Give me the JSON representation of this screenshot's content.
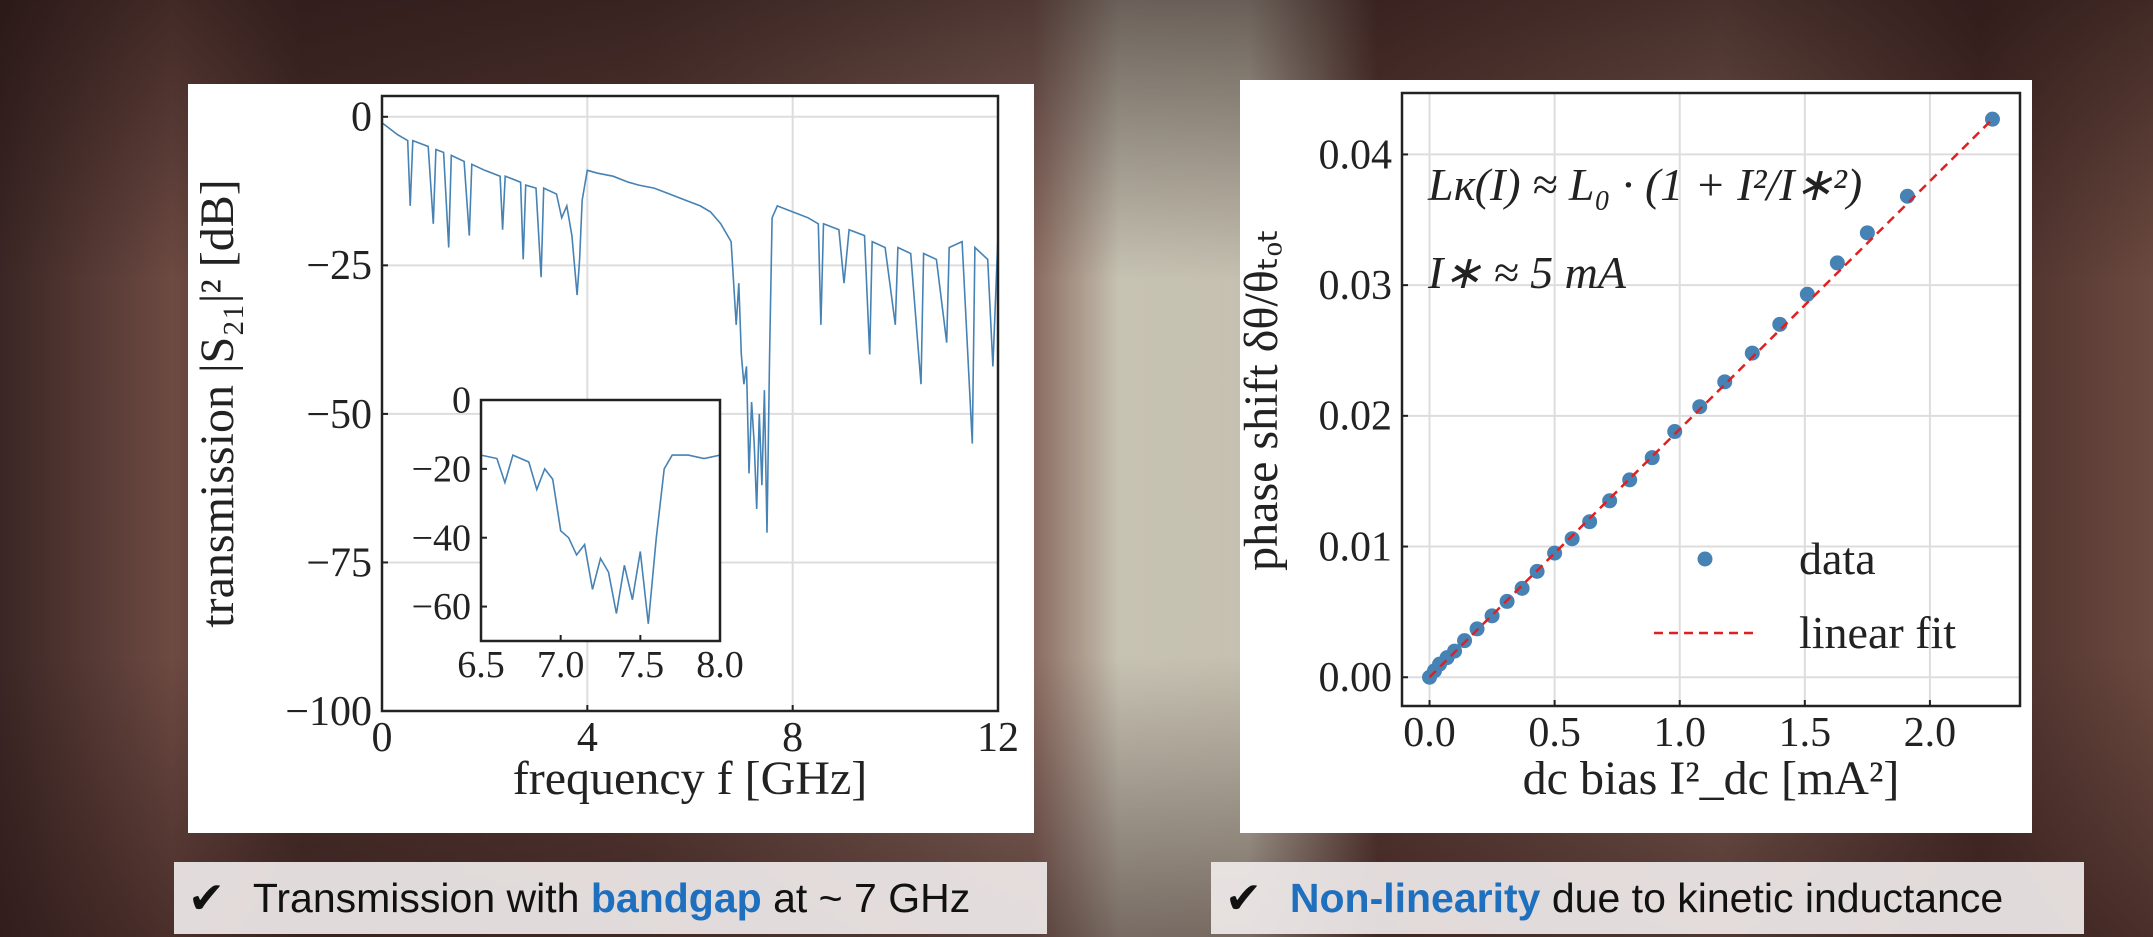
{
  "chart_data": [
    {
      "type": "line",
      "xlabel": "frequency f [GHz]",
      "ylabel": "transmission |S₂₁|² [dB]",
      "color": "#4682b4",
      "grid": true,
      "x": [
        0,
        0.3,
        0.5,
        0.55,
        0.6,
        0.9,
        1.0,
        1.05,
        1.2,
        1.3,
        1.35,
        1.6,
        1.7,
        1.75,
        2.0,
        2.3,
        2.35,
        2.4,
        2.7,
        2.75,
        2.8,
        3.0,
        3.1,
        3.15,
        3.4,
        3.5,
        3.6,
        3.7,
        3.8,
        3.85,
        3.9,
        4.0,
        4.2,
        4.5,
        4.8,
        5.0,
        5.3,
        5.6,
        5.9,
        6.2,
        6.4,
        6.6,
        6.8,
        6.9,
        6.95,
        7.0,
        7.05,
        7.1,
        7.15,
        7.2,
        7.25,
        7.3,
        7.35,
        7.4,
        7.45,
        7.5,
        7.55,
        7.6,
        7.7,
        8.0,
        8.3,
        8.5,
        8.55,
        8.6,
        8.9,
        9.0,
        9.1,
        9.4,
        9.5,
        9.55,
        9.8,
        10.0,
        10.05,
        10.3,
        10.5,
        10.55,
        10.8,
        11.0,
        11.05,
        11.3,
        11.5,
        11.55,
        11.8,
        11.9,
        12.0
      ],
      "values": [
        -1,
        -3,
        -4,
        -15,
        -4,
        -5,
        -18,
        -5.5,
        -6,
        -22,
        -6.5,
        -7.5,
        -20,
        -8,
        -9,
        -10,
        -19,
        -10,
        -11,
        -24,
        -11.5,
        -12,
        -27,
        -12,
        -13,
        -17,
        -15,
        -20,
        -30,
        -24,
        -14,
        -9,
        -9.5,
        -10,
        -11,
        -11.5,
        -12,
        -13,
        -14,
        -15,
        -16,
        -18,
        -21,
        -35,
        -28,
        -40,
        -45,
        -42,
        -60,
        -48,
        -55,
        -66,
        -50,
        -62,
        -46,
        -70,
        -40,
        -17,
        -15,
        -16,
        -17,
        -18,
        -35,
        -18,
        -19,
        -28,
        -19,
        -20,
        -40,
        -21,
        -22,
        -35,
        -22,
        -23,
        -45,
        -23,
        -24,
        -38,
        -22,
        -21,
        -55,
        -22,
        -24,
        -42,
        -20
      ],
      "xlim": [
        0,
        12
      ],
      "ylim": [
        -100,
        3.5
      ],
      "xticks": [
        0,
        4,
        8,
        12
      ],
      "yticks": [
        0,
        {
          "value": -25,
          "label": "−25"
        },
        {
          "value": -50,
          "label": "−50"
        },
        {
          "value": -75,
          "label": "−75"
        },
        {
          "value": -100,
          "label": "−100"
        }
      ]
    },
    {
      "type": "line",
      "color": "#4682b4",
      "grid": false,
      "x": [
        6.5,
        6.6,
        6.65,
        6.7,
        6.8,
        6.85,
        6.9,
        6.95,
        7.0,
        7.05,
        7.1,
        7.15,
        7.2,
        7.25,
        7.3,
        7.35,
        7.4,
        7.45,
        7.5,
        7.55,
        7.6,
        7.65,
        7.7,
        7.8,
        7.9,
        8.0
      ],
      "values": [
        -16,
        -17,
        -24,
        -16,
        -18,
        -26,
        -20,
        -23,
        -38,
        -40,
        -45,
        -42,
        -55,
        -46,
        -50,
        -62,
        -48,
        -58,
        -44,
        -65,
        -40,
        -20,
        -16,
        -16,
        -17,
        -16
      ],
      "xlim": [
        6.5,
        8.0
      ],
      "ylim": [
        -70,
        0
      ],
      "xticks": [
        {
          "value": 6.5,
          "label": "6.5"
        },
        {
          "value": 7,
          "label": "7.0"
        },
        {
          "value": 7.5,
          "label": "7.5"
        },
        {
          "value": 8,
          "label": "8.0"
        }
      ],
      "yticks": [
        0,
        {
          "value": -20,
          "label": "−20"
        },
        {
          "value": -40,
          "label": "−40"
        },
        {
          "value": -60,
          "label": "−60"
        }
      ]
    },
    {
      "type": "scatter",
      "xlabel": "dc bias I²_dc [mA²]",
      "ylabel": "phase shift δθ/θₜₒₜ",
      "grid": true,
      "annotations": [
        "Lᴋ(I) ≈ L₀ · (1 + I²/I∗²)",
        "I∗ ≈ 5 mA"
      ],
      "legend": "lower right",
      "series": [
        {
          "name": "data",
          "color": "#4682b4",
          "style": "markers",
          "x": [
            0,
            0.02,
            0.04,
            0.07,
            0.1,
            0.14,
            0.19,
            0.25,
            0.31,
            0.37,
            0.43,
            0.5,
            0.57,
            0.64,
            0.72,
            0.8,
            0.89,
            0.98,
            1.08,
            1.18,
            1.29,
            1.4,
            1.51,
            1.63,
            1.75,
            1.91,
            2.25
          ],
          "values": [
            0,
            0.0005,
            0.001,
            0.0015,
            0.002,
            0.0028,
            0.0037,
            0.0047,
            0.0058,
            0.0068,
            0.0081,
            0.0095,
            0.0106,
            0.0119,
            0.0135,
            0.0151,
            0.0168,
            0.0188,
            0.0207,
            0.0226,
            0.0248,
            0.027,
            0.0293,
            0.0317,
            0.034,
            0.0368,
            0.0427
          ]
        },
        {
          "name": "linear fit",
          "color": "#e02020",
          "style": "dashed",
          "x": [
            0,
            2.25
          ],
          "values": [
            0,
            0.0427
          ]
        }
      ],
      "xlim": [
        -0.11,
        2.36
      ],
      "ylim": [
        -0.0022,
        0.0447
      ],
      "xticks": [
        {
          "value": 0,
          "label": "0.0"
        },
        0.5,
        {
          "value": 1,
          "label": "1.0"
        },
        1.5,
        {
          "value": 2,
          "label": "2.0"
        }
      ],
      "yticks": [
        {
          "value": 0,
          "label": "0.00"
        },
        0.01,
        0.02,
        0.03,
        0.04
      ]
    }
  ],
  "captions": [
    {
      "check": "✔",
      "parts": [
        "Transmission with",
        "bandgap",
        "at ~ 7 GHz"
      ]
    },
    {
      "check": "✔",
      "parts": [
        "",
        "Non-linearity",
        "due to kinetic inductance"
      ]
    }
  ]
}
